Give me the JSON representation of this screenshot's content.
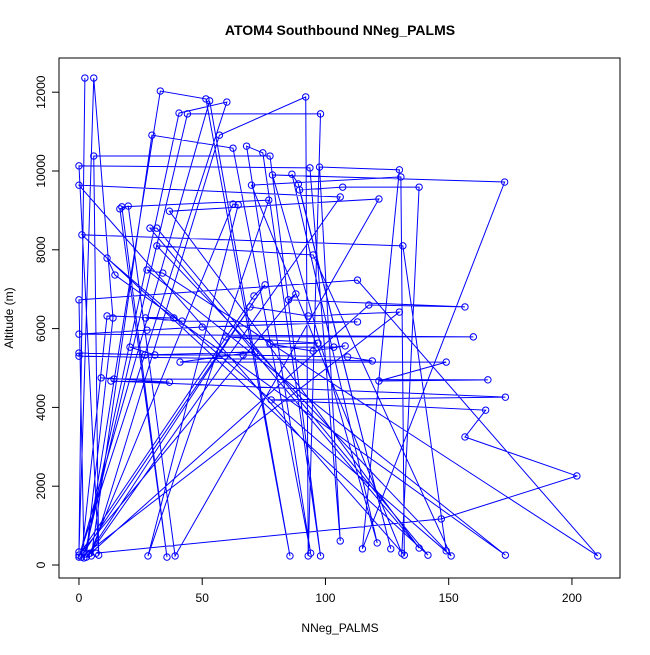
{
  "chart_data": {
    "type": "line",
    "title": "ATOM4 Southbound NNeg_PALMS",
    "x_label": "NNeg_PALMS",
    "y_label": "Altitude (m)",
    "color": "#0000ff",
    "markers": true,
    "x": [
      2.4,
      0,
      6,
      13.8,
      3,
      33,
      51.5,
      85.6,
      53,
      0,
      60,
      40.6,
      2,
      44,
      98,
      93,
      92,
      57,
      5,
      29.6,
      62.5,
      94,
      68,
      74.6,
      98,
      77.5,
      6,
      8,
      0,
      93.7,
      106,
      97.6,
      130,
      115,
      172.7,
      78.5,
      121,
      86.4,
      89,
      126.5,
      89.5,
      107,
      138,
      131,
      70,
      130.6,
      132,
      0,
      106,
      4.5,
      62.5,
      64.6,
      28,
      77,
      17.4,
      35.7,
      16.6,
      20,
      39,
      121.7,
      36.7,
      138,
      28.8,
      31.6,
      141.6,
      1.2,
      131.4,
      149,
      31.6,
      95,
      151,
      11.4,
      14.6,
      173,
      27.6,
      34,
      210.5,
      113,
      0,
      2,
      75.5,
      71,
      0,
      88,
      85,
      156.6,
      117.6,
      3,
      69.4,
      93,
      130,
      1,
      11.4,
      38.5,
      27,
      41.8,
      113,
      50,
      27.6,
      0,
      160,
      59.6,
      97,
      77.5,
      95,
      108,
      103.4,
      20.7,
      30.8,
      0,
      0,
      119,
      109,
      66.6,
      26.8,
      71.4,
      41,
      149,
      121.7,
      165.9,
      14.2,
      9,
      36.7,
      13,
      173,
      78,
      165,
      156.6,
      202,
      147,
      7
    ],
    "y": [
      12360,
      330,
      12360,
      6270,
      280,
      12030,
      11830,
      230,
      11780,
      200,
      11750,
      11470,
      180,
      11450,
      11450,
      230,
      11880,
      10910,
      230,
      10910,
      10580,
      300,
      10630,
      10460,
      230,
      10380,
      10380,
      250,
      10130,
      10080,
      610,
      10100,
      10030,
      410,
      9720,
      9900,
      560,
      9920,
      9670,
      410,
      9520,
      9590,
      9590,
      300,
      9640,
      9850,
      250,
      9640,
      9340,
      300,
      9160,
      9140,
      230,
      9260,
      9090,
      200,
      9040,
      9110,
      230,
      9290,
      8980,
      430,
      8550,
      8550,
      250,
      8380,
      8100,
      360,
      8100,
      7870,
      230,
      7790,
      7360,
      250,
      7490,
      7410,
      230,
      7230,
      6730,
      330,
      7110,
      6830,
      250,
      6880,
      6730,
      6550,
      6600,
      200,
      6550,
      6320,
      6420,
      200,
      6320,
      6270,
      6270,
      6190,
      6170,
      6040,
      5960,
      5860,
      5790,
      5790,
      5630,
      5610,
      5430,
      5560,
      5530,
      5530,
      5330,
      5380,
      5300,
      5180,
      5280,
      5330,
      5330,
      5410,
      5150,
      5150,
      4670,
      4700,
      4720,
      4750,
      4640,
      4670,
      4260,
      4190,
      3930,
      3250,
      2260,
      1170,
      300
    ],
    "xlim": [
      -8.1,
      219.5
    ],
    "ylim": [
      -330,
      12868
    ],
    "xticks": [
      0,
      50,
      100,
      150,
      200
    ],
    "yticks": [
      0,
      2000,
      4000,
      6000,
      8000,
      10000,
      12000
    ]
  }
}
